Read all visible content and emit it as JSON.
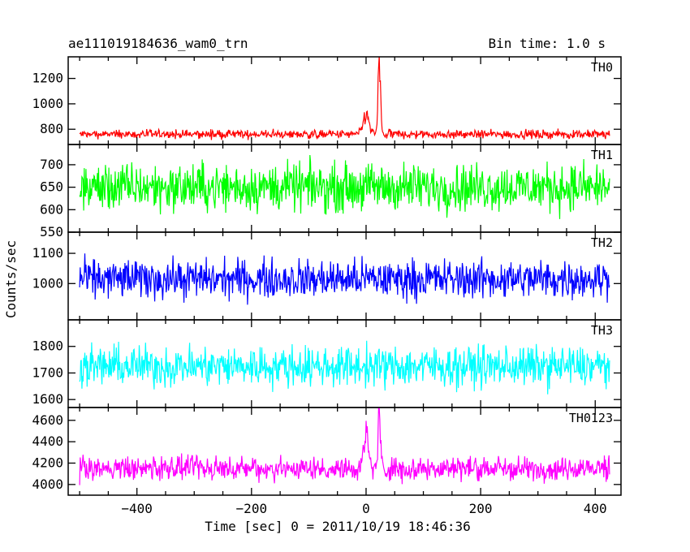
{
  "header": {
    "title": "ae111019184636_wam0_trn",
    "bin_time": "Bin time: 1.0 s"
  },
  "chart_data": {
    "type": "line",
    "xlabel": "Time [sec] 0 = 2011/10/19 18:46:36",
    "ylabel": "Counts/sec",
    "xlim": [
      -520,
      445
    ],
    "x_ticks": [
      -400,
      -200,
      0,
      200,
      400
    ],
    "x_range": [
      -500,
      425
    ],
    "panels": [
      {
        "name": "TH0",
        "color": "#ff0000",
        "ylim": [
          680,
          1370
        ],
        "y_ticks": [
          800,
          1000,
          1200
        ],
        "baseline": 760,
        "noise": 30,
        "peaks": [
          {
            "x": 0,
            "amp": 150,
            "width": 7
          },
          {
            "x": 23,
            "amp": 560,
            "width": 3
          }
        ]
      },
      {
        "name": "TH1",
        "color": "#00ff00",
        "ylim": [
          550,
          745
        ],
        "y_ticks": [
          550,
          600,
          650,
          700
        ],
        "baseline": 650,
        "noise": 45,
        "peaks": []
      },
      {
        "name": "TH2",
        "color": "#0000ff",
        "ylim": [
          880,
          1170
        ],
        "y_ticks": [
          1000,
          1100
        ],
        "baseline": 1015,
        "noise": 55,
        "peaks": []
      },
      {
        "name": "TH3",
        "color": "#00ffff",
        "ylim": [
          1570,
          1900
        ],
        "y_ticks": [
          1600,
          1700,
          1800
        ],
        "baseline": 1725,
        "noise": 65,
        "peaks": []
      },
      {
        "name": "TH0123",
        "color": "#ff00ff",
        "ylim": [
          3900,
          4720
        ],
        "y_ticks": [
          4000,
          4200,
          4400,
          4600
        ],
        "baseline": 4150,
        "noise": 95,
        "peaks": [
          {
            "x": 0,
            "amp": 300,
            "width": 6
          },
          {
            "x": 23,
            "amp": 520,
            "width": 3
          }
        ]
      }
    ]
  }
}
